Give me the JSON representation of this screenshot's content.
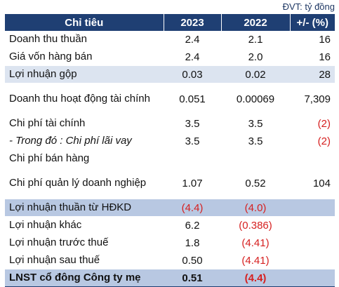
{
  "unit_label": "ĐVT: tỷ đồng",
  "header": {
    "col_label": "Chỉ tiêu",
    "col_2023": "2023",
    "col_2022": "2022",
    "col_change": "+/- (%)"
  },
  "rows": [
    {
      "label": "Doanh thu thuần",
      "v2023": "2.4",
      "v2022": "2.1",
      "change": "16"
    },
    {
      "label": "Giá vốn hàng bán",
      "v2023": "2.4",
      "v2022": "2.0",
      "change": "16"
    },
    {
      "label": "Lợi nhuận gộp",
      "v2023": "0.03",
      "v2022": "0.02",
      "change": "28"
    },
    {
      "label": "Doanh thu hoạt động tài chính",
      "v2023": "0.051",
      "v2022": "0.00069",
      "change": "7,309"
    },
    {
      "label": "Chi phí tài chính",
      "v2023": "3.5",
      "v2022": "3.5",
      "change": "(2)"
    },
    {
      "label": "- Trong đó : Chi phí lãi vay",
      "v2023": "3.5",
      "v2022": "3.5",
      "change": "(2)"
    },
    {
      "label": "Chi phí bán hàng",
      "v2023": "",
      "v2022": "",
      "change": ""
    },
    {
      "label": "Chi phí quản lý doanh nghiệp",
      "v2023": "1.07",
      "v2022": "0.52",
      "change": "104"
    },
    {
      "label": "Lợi nhuận thuần từ HĐKD",
      "v2023": "(4.4)",
      "v2022": "(4.0)",
      "change": ""
    },
    {
      "label": "Lợi nhuận khác",
      "v2023": "6.2",
      "v2022": "(0.386)",
      "change": ""
    },
    {
      "label": "Lợi nhuận trước thuế",
      "v2023": "1.8",
      "v2022": "(4.41)",
      "change": ""
    },
    {
      "label": "Lợi nhuận sau thuế",
      "v2023": "0.50",
      "v2022": "(4.41)",
      "change": ""
    },
    {
      "label": "LNST cổ đông Công ty mẹ",
      "v2023": "0.51",
      "v2022": "(4.4)",
      "change": ""
    }
  ],
  "colors": {
    "header_bg": "#1f3f73",
    "shade_light": "#dce4f0",
    "shade_mid": "#b8c8e2",
    "negative": "#d62020"
  }
}
